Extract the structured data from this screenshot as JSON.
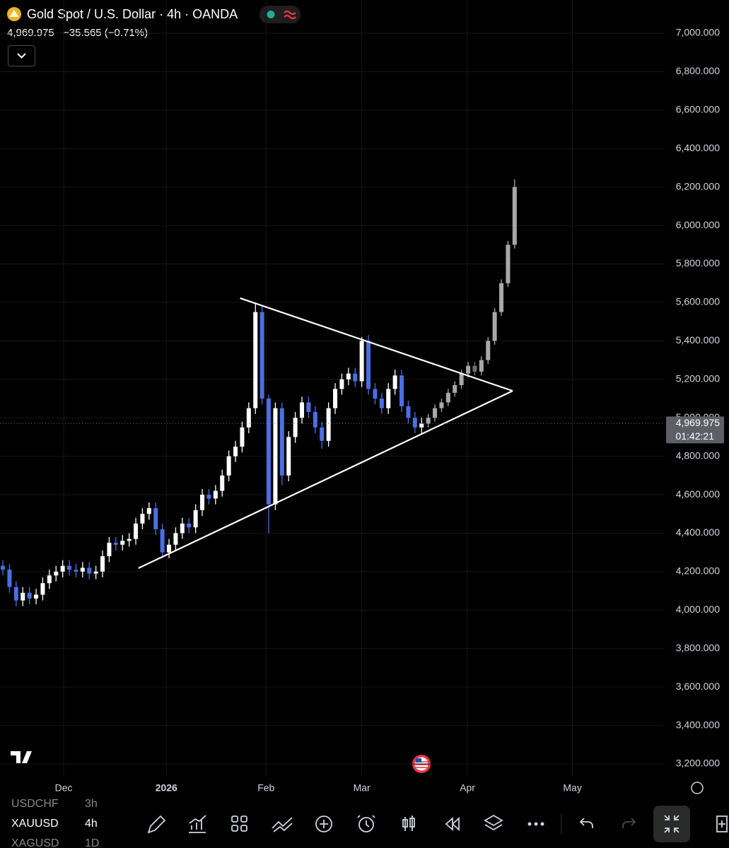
{
  "header": {
    "title": "Gold Spot / U.S. Dollar · 4h · OANDA",
    "price": "4,969.975",
    "change": "−35.565 (−0.71%)"
  },
  "chart_data": {
    "type": "candlestick",
    "xlim": [
      -0.43,
      99.04
    ],
    "ylim": [
      3200,
      7000
    ],
    "xticks": [
      {
        "value": 9.15,
        "label": "Dec"
      },
      {
        "value": 24.6,
        "label": "2026"
      },
      {
        "value": 39.6,
        "label": "Feb"
      },
      {
        "value": 54,
        "label": "Mar"
      },
      {
        "value": 69.9,
        "label": "Apr"
      },
      {
        "value": 85.7,
        "label": "May"
      }
    ],
    "yticks": [
      {
        "value": 3200,
        "label": "3,200.000"
      },
      {
        "value": 3400,
        "label": "3,400.000"
      },
      {
        "value": 3600,
        "label": "3,600.000"
      },
      {
        "value": 3800,
        "label": "3,800.000"
      },
      {
        "value": 4000,
        "label": "4,000.000"
      },
      {
        "value": 4200,
        "label": "4,200.000"
      },
      {
        "value": 4400,
        "label": "4,400.000"
      },
      {
        "value": 4600,
        "label": "4,600.000"
      },
      {
        "value": 4800,
        "label": "4,800.000"
      },
      {
        "value": 5000,
        "label": "5,000.000"
      },
      {
        "value": 5200,
        "label": "5,200.000"
      },
      {
        "value": 5400,
        "label": "5,400.000"
      },
      {
        "value": 5600,
        "label": "5,600.000"
      },
      {
        "value": 5800,
        "label": "5,800.000"
      },
      {
        "value": 6000,
        "label": "6,000.000"
      },
      {
        "value": 6200,
        "label": "6,200.000"
      },
      {
        "value": 6400,
        "label": "6,400.000"
      },
      {
        "value": 6600,
        "label": "6,600.000"
      },
      {
        "value": 6800,
        "label": "6,800.000"
      },
      {
        "value": 7000,
        "label": "7,000.000"
      }
    ],
    "series": [
      {
        "up_color": "#ffffff",
        "down_color": "#4a6fe3",
        "x": [
          0,
          1,
          2,
          3,
          4,
          5,
          6,
          7,
          8,
          9,
          10,
          11,
          12,
          13,
          14,
          15,
          16,
          17,
          18,
          19,
          20,
          21,
          22,
          23,
          24,
          25,
          26,
          27,
          28,
          29,
          30,
          31,
          32,
          33,
          34,
          35,
          36,
          37,
          38,
          39,
          40,
          41,
          42,
          43,
          44,
          45,
          46,
          47,
          48,
          49,
          50,
          51,
          52,
          53,
          54,
          55,
          56,
          57,
          58,
          59,
          60,
          61,
          62,
          63
        ],
        "open": [
          4230,
          4210,
          4120,
          4050,
          4090,
          4060,
          4080,
          4140,
          4180,
          4200,
          4230,
          4210,
          4200,
          4220,
          4190,
          4200,
          4280,
          4350,
          4340,
          4360,
          4370,
          4450,
          4500,
          4530,
          4420,
          4300,
          4340,
          4400,
          4450,
          4430,
          4520,
          4600,
          4580,
          4620,
          4700,
          4800,
          4850,
          4950,
          5050,
          5550,
          5100,
          4550,
          5050,
          4700,
          4900,
          5000,
          5080,
          5030,
          4950,
          4880,
          5050,
          5150,
          5200,
          5230,
          5190,
          5400,
          5150,
          5100,
          5050,
          5150,
          5220,
          5060,
          5000,
          4950
        ],
        "high": [
          4260,
          4240,
          4150,
          4120,
          4120,
          4110,
          4170,
          4210,
          4230,
          4260,
          4260,
          4240,
          4250,
          4250,
          4230,
          4310,
          4380,
          4380,
          4390,
          4400,
          4480,
          4530,
          4560,
          4560,
          4450,
          4370,
          4430,
          4480,
          4480,
          4550,
          4630,
          4630,
          4650,
          4730,
          4830,
          4880,
          4980,
          5080,
          5600,
          5580,
          5120,
          5080,
          5080,
          4930,
          5030,
          5110,
          5110,
          5060,
          4980,
          5080,
          5180,
          5230,
          5260,
          5260,
          5420,
          5430,
          5180,
          5130,
          5180,
          5250,
          5250,
          5090,
          5030,
          5000
        ],
        "low": [
          4180,
          4090,
          4020,
          4020,
          4030,
          4030,
          4050,
          4110,
          4150,
          4170,
          4180,
          4170,
          4170,
          4160,
          4160,
          4170,
          4250,
          4310,
          4310,
          4330,
          4340,
          4420,
          4470,
          4390,
          4270,
          4270,
          4310,
          4370,
          4400,
          4400,
          4490,
          4550,
          4550,
          4590,
          4670,
          4770,
          4820,
          4920,
          5020,
          5070,
          4400,
          4520,
          4650,
          4670,
          4870,
          4970,
          5000,
          4920,
          4840,
          4850,
          5020,
          5120,
          5170,
          5160,
          5160,
          5120,
          5070,
          5020,
          5020,
          5120,
          5030,
          4970,
          4920,
          4920
        ],
        "close": [
          4210,
          4120,
          4050,
          4090,
          4060,
          4080,
          4140,
          4180,
          4200,
          4230,
          4210,
          4200,
          4220,
          4190,
          4200,
          4280,
          4350,
          4340,
          4360,
          4370,
          4450,
          4500,
          4530,
          4420,
          4300,
          4340,
          4400,
          4450,
          4430,
          4520,
          4600,
          4580,
          4620,
          4700,
          4800,
          4850,
          4950,
          5050,
          5550,
          5100,
          4550,
          5050,
          4700,
          4900,
          5000,
          5080,
          5030,
          4950,
          4880,
          5050,
          5150,
          5200,
          5230,
          5190,
          5400,
          5150,
          5100,
          5050,
          5150,
          5220,
          5060,
          5000,
          4950,
          4970
        ]
      },
      {
        "up_color": "#a8a8a8",
        "down_color": "#6e6e6e",
        "x": [
          64,
          65,
          66,
          67,
          68,
          69,
          70,
          71,
          72,
          73,
          74,
          75,
          76,
          77
        ],
        "open": [
          4970,
          5000,
          5050,
          5080,
          5130,
          5170,
          5230,
          5270,
          5240,
          5300,
          5400,
          5550,
          5700,
          5900
        ],
        "high": [
          5020,
          5070,
          5100,
          5150,
          5190,
          5250,
          5290,
          5290,
          5320,
          5420,
          5570,
          5720,
          5920,
          6240
        ],
        "low": [
          4950,
          4980,
          5030,
          5060,
          5110,
          5150,
          5210,
          5220,
          5220,
          5280,
          5380,
          5530,
          5680,
          5880
        ],
        "close": [
          5000,
          5050,
          5080,
          5130,
          5170,
          5230,
          5270,
          5240,
          5300,
          5400,
          5550,
          5700,
          5900,
          6200
        ]
      }
    ],
    "trendlines": [
      {
        "color": "#ffffff",
        "x": [
          35.7,
          76.7
        ],
        "y": [
          5622,
          5140
        ]
      },
      {
        "color": "#ffffff",
        "x": [
          20.4,
          76.7
        ],
        "y": [
          4218,
          5140
        ]
      }
    ],
    "last_price": {
      "value": 4969.975,
      "label": "4,969.975"
    },
    "countdown": "01:42:21"
  },
  "toolbar": {
    "symbols": [
      {
        "symbol": "USDCHF",
        "interval": "3h"
      },
      {
        "symbol": "XAUUSD",
        "interval": "4h"
      },
      {
        "symbol": "XAGUSD",
        "interval": "1D"
      }
    ]
  }
}
